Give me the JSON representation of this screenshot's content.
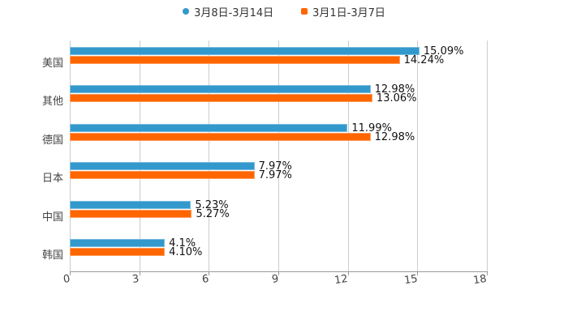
{
  "legend": [
    {
      "label": "3月8日-3月14日",
      "color": "#3399cc",
      "shape": "circle"
    },
    {
      "label": "3月1日-3月7日",
      "color": "#ff6600",
      "shape": "square"
    }
  ],
  "axis": {
    "x_ticks": [
      "0",
      "3",
      "6",
      "9",
      "12",
      "15",
      "18"
    ]
  },
  "chart_data": {
    "type": "bar",
    "orientation": "horizontal",
    "title": "",
    "xlabel": "",
    "ylabel": "",
    "xlim": [
      0,
      18
    ],
    "x_ticks": [
      0,
      3,
      6,
      9,
      12,
      15,
      18
    ],
    "grid": true,
    "legend_position": "top",
    "categories": [
      "美国",
      "其他",
      "德国",
      "日本",
      "中国",
      "韩国"
    ],
    "series": [
      {
        "name": "3月8日-3月14日",
        "color": "#3399cc",
        "values": [
          15.09,
          12.98,
          11.99,
          7.97,
          5.23,
          4.1
        ],
        "labels": [
          "15.09%",
          "12.98%",
          "11.99%",
          "7.97%",
          "5.23%",
          "4.1%"
        ]
      },
      {
        "name": "3月1日-3月7日",
        "color": "#ff6600",
        "values": [
          14.24,
          13.06,
          12.98,
          7.97,
          5.27,
          4.1
        ],
        "labels": [
          "14.24%",
          "13.06%",
          "12.98%",
          "7.97%",
          "5.27%",
          "4.10%"
        ]
      }
    ]
  }
}
